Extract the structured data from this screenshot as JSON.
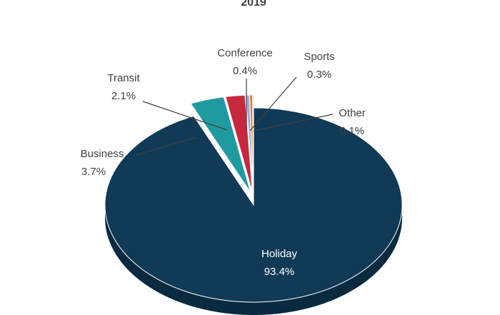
{
  "chart_data": {
    "type": "pie",
    "title": "2019",
    "categories": [
      "Holiday",
      "Business",
      "Transit",
      "Conference",
      "Sports",
      "Other"
    ],
    "values": [
      93.4,
      3.7,
      2.1,
      0.4,
      0.3,
      0.1
    ],
    "value_labels": [
      "93.4%",
      "3.7%",
      "2.1%",
      "0.4%",
      "0.3%",
      "0.1%"
    ],
    "colors": [
      "#103a56",
      "#1f9ba0",
      "#c8283e",
      "#8fb0d6",
      "#d97a1a",
      "#6f6f6f"
    ],
    "side_colors": [
      "#0a2a40",
      "#167579",
      "#951d2e",
      "#6d8caf",
      "#a85c12",
      "#4f4f4f"
    ],
    "style": "3d-exploded",
    "exploded_slice": "Holiday",
    "legend": "none"
  }
}
